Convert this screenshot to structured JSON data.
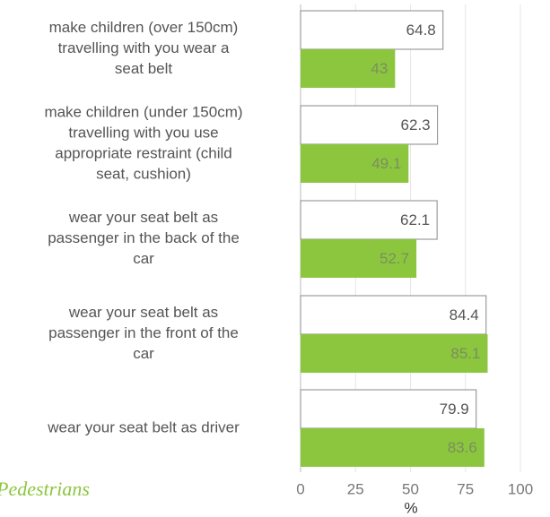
{
  "chart_data": {
    "type": "bar",
    "orientation": "horizontal",
    "categories": [
      "make children (over 150cm)\ntravelling with you wear a\nseat belt",
      "make children (under 150cm)\ntravelling with you use\nappropriate restraint (child\nseat, cushion)",
      "wear your seat belt as\npassenger in the back of the\ncar",
      "wear your seat belt as\npassenger in the front of the\ncar",
      "wear your seat belt as driver"
    ],
    "series": [
      {
        "color": "#ffffff",
        "values": [
          64.8,
          62.3,
          62.1,
          84.4,
          79.9
        ]
      },
      {
        "color": "#8cc63e",
        "values": [
          43,
          49.1,
          52.7,
          85.1,
          83.6
        ]
      }
    ],
    "xlim": [
      0,
      100
    ],
    "xticks": [
      0,
      25,
      50,
      75,
      100
    ],
    "xlabel": "%",
    "grid": true,
    "annotation": "Pedestrians"
  }
}
